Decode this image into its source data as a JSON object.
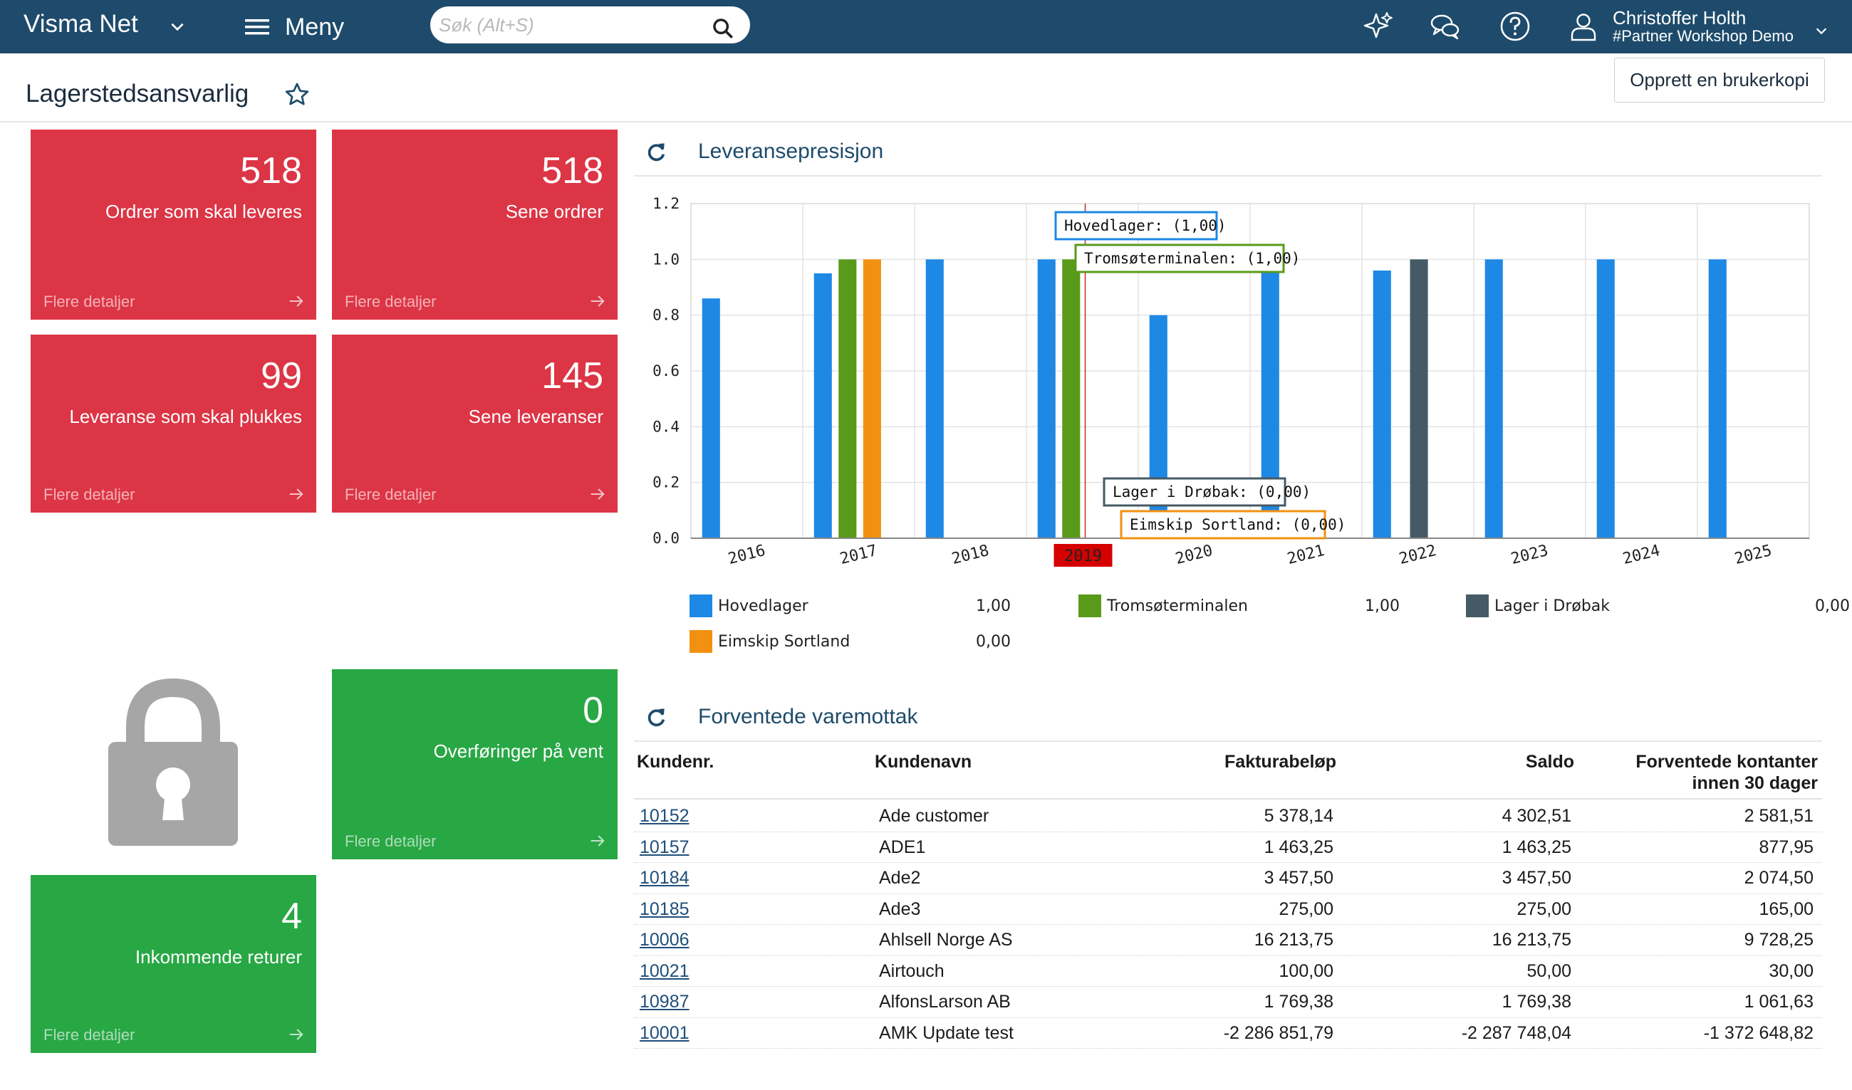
{
  "topbar": {
    "brand": "Visma Net",
    "menu_label": "Meny",
    "search_placeholder": "Søk (Alt+S)",
    "user_name": "Christoffer Holth",
    "user_company": "#Partner Workshop Demo"
  },
  "page": {
    "title": "Lagerstedsansvarlig",
    "copy_button": "Opprett en brukerkopi"
  },
  "tiles": [
    {
      "value": "518",
      "label": "Ordrer som skal leveres",
      "more": "Flere detaljer",
      "color": "#dc3545"
    },
    {
      "value": "518",
      "label": "Sene ordrer",
      "more": "Flere detaljer",
      "color": "#dc3545"
    },
    {
      "value": "99",
      "label": "Leveranse som skal plukkes",
      "more": "Flere detaljer",
      "color": "#dc3545"
    },
    {
      "value": "145",
      "label": "Sene leveranser",
      "more": "Flere detaljer",
      "color": "#dc3545"
    },
    {
      "value": "0",
      "label": "Overføringer på vent",
      "more": "Flere detaljer",
      "color": "#28a745"
    },
    {
      "value": "4",
      "label": "Inkommende returer",
      "more": "Flere detaljer",
      "color": "#28a745"
    }
  ],
  "chart_panel": {
    "title": "Leveransepresisjon"
  },
  "chart_data": {
    "type": "bar",
    "categories": [
      "2016",
      "2017",
      "2018",
      "2019",
      "2020",
      "2021",
      "2022",
      "2023",
      "2024",
      "2025"
    ],
    "ylim": [
      0,
      1.2
    ],
    "yticks": [
      "0.0",
      "0.2",
      "0.4",
      "0.6",
      "0.8",
      "1.0",
      "1.2"
    ],
    "grid": true,
    "legend_position": "bottom",
    "series": [
      {
        "name": "Hovedlager",
        "color": "#1e88e5",
        "legend_value": "1,00",
        "values": [
          0.86,
          0.95,
          1.0,
          1.0,
          0.8,
          1.0,
          0.96,
          1.0,
          1.0,
          1.0
        ]
      },
      {
        "name": "Tromsøterminalen",
        "color": "#5a9a1a",
        "legend_value": "1,00",
        "values": [
          null,
          1.0,
          null,
          1.0,
          null,
          null,
          null,
          null,
          null,
          null
        ]
      },
      {
        "name": "Lager i Drøbak",
        "color": "#455a64",
        "legend_value": "0,00",
        "values": [
          null,
          null,
          null,
          null,
          null,
          null,
          1.0,
          null,
          null,
          null
        ]
      },
      {
        "name": "Eimskip Sortland",
        "color": "#f29111",
        "legend_value": "0,00",
        "values": [
          null,
          1.0,
          null,
          null,
          null,
          null,
          null,
          null,
          null,
          null
        ]
      }
    ],
    "hover_category": "2019",
    "callouts": [
      {
        "text": "Hovedlager: (1,00)",
        "color": "#1e88e5"
      },
      {
        "text": "Tromsøterminalen: (1,00)",
        "color": "#5a9a1a"
      },
      {
        "text": "Lager i Drøbak: (0,00)",
        "color": "#455a64"
      },
      {
        "text": "Eimskip Sortland: (0,00)",
        "color": "#f29111"
      }
    ]
  },
  "table_panel": {
    "title": "Forventede varemottak",
    "headers": [
      "Kundenr.",
      "Kundenavn",
      "Fakturabeløp",
      "Saldo",
      "Forventede kontanter",
      "innen 30 dager"
    ],
    "rows": [
      {
        "id": "10152",
        "name": "Ade customer",
        "invoice": "5 378,14",
        "balance": "4 302,51",
        "expected": "2 581,51"
      },
      {
        "id": "10157",
        "name": "ADE1",
        "invoice": "1 463,25",
        "balance": "1 463,25",
        "expected": "877,95"
      },
      {
        "id": "10184",
        "name": "Ade2",
        "invoice": "3 457,50",
        "balance": "3 457,50",
        "expected": "2 074,50"
      },
      {
        "id": "10185",
        "name": "Ade3",
        "invoice": "275,00",
        "balance": "275,00",
        "expected": "165,00"
      },
      {
        "id": "10006",
        "name": "Ahlsell Norge AS",
        "invoice": "16 213,75",
        "balance": "16 213,75",
        "expected": "9 728,25"
      },
      {
        "id": "10021",
        "name": "Airtouch",
        "invoice": "100,00",
        "balance": "50,00",
        "expected": "30,00"
      },
      {
        "id": "10987",
        "name": "AlfonsLarson AB",
        "invoice": "1 769,38",
        "balance": "1 769,38",
        "expected": "1 061,63"
      },
      {
        "id": "10001",
        "name": "AMK Update test",
        "invoice": "-2 286 851,79",
        "balance": "-2 287 748,04",
        "expected": "-1 372 648,82"
      }
    ]
  }
}
